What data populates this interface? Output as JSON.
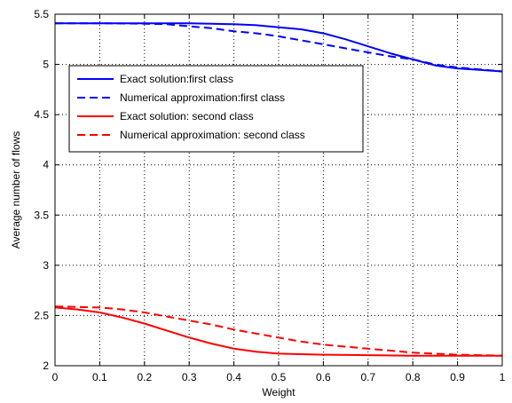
{
  "chart_data": {
    "type": "line",
    "title": "",
    "xlabel": "Weight",
    "ylabel": "Average number of flows",
    "xlim": [
      0,
      1
    ],
    "ylim": [
      2,
      5.5
    ],
    "xticks": [
      0,
      0.1,
      0.2,
      0.3,
      0.4,
      0.5,
      0.6,
      0.7,
      0.8,
      0.9,
      1
    ],
    "yticks": [
      2,
      2.5,
      3,
      3.5,
      4,
      4.5,
      5,
      5.5
    ],
    "xtick_labels": [
      "0",
      "0.1",
      "0.2",
      "0.3",
      "0.4",
      "0.5",
      "0.6",
      "0.7",
      "0.8",
      "0.9",
      "1"
    ],
    "ytick_labels": [
      "2",
      "2.5",
      "3",
      "3.5",
      "4",
      "4.5",
      "5",
      "5.5"
    ],
    "grid": true,
    "grid_style": "dotted",
    "legend_position": "upper-left",
    "series": [
      {
        "name": "Exact solution:first class",
        "color": "#0000ff",
        "linestyle": "solid",
        "x": [
          0,
          0.1,
          0.2,
          0.3,
          0.35,
          0.4,
          0.45,
          0.5,
          0.55,
          0.6,
          0.65,
          0.7,
          0.75,
          0.8,
          0.85,
          0.9,
          0.95,
          1
        ],
        "y": [
          5.41,
          5.41,
          5.41,
          5.41,
          5.405,
          5.4,
          5.39,
          5.37,
          5.35,
          5.31,
          5.25,
          5.18,
          5.11,
          5.05,
          4.99,
          4.96,
          4.945,
          4.93
        ]
      },
      {
        "name": "Numerical approximation:first class",
        "color": "#0000ff",
        "linestyle": "dashed",
        "x": [
          0,
          0.1,
          0.2,
          0.25,
          0.3,
          0.35,
          0.4,
          0.45,
          0.5,
          0.55,
          0.6,
          0.65,
          0.7,
          0.75,
          0.8,
          0.85,
          0.9,
          0.95,
          1
        ],
        "y": [
          5.41,
          5.41,
          5.405,
          5.4,
          5.38,
          5.36,
          5.33,
          5.31,
          5.28,
          5.24,
          5.2,
          5.16,
          5.12,
          5.08,
          5.05,
          5.0,
          4.97,
          4.95,
          4.93
        ]
      },
      {
        "name": "Exact solution: second class",
        "color": "#ff0000",
        "linestyle": "solid",
        "x": [
          0,
          0.05,
          0.1,
          0.15,
          0.2,
          0.25,
          0.3,
          0.35,
          0.4,
          0.45,
          0.5,
          0.55,
          0.6,
          0.7,
          0.8,
          0.9,
          1
        ],
        "y": [
          2.58,
          2.56,
          2.53,
          2.48,
          2.42,
          2.35,
          2.28,
          2.22,
          2.17,
          2.14,
          2.12,
          2.115,
          2.11,
          2.105,
          2.1,
          2.1,
          2.1
        ]
      },
      {
        "name": "Numerical approximation: second class",
        "color": "#ff0000",
        "linestyle": "dashed",
        "x": [
          0,
          0.05,
          0.1,
          0.15,
          0.2,
          0.25,
          0.3,
          0.35,
          0.4,
          0.45,
          0.5,
          0.55,
          0.6,
          0.65,
          0.7,
          0.75,
          0.8,
          0.85,
          0.9,
          0.95,
          1
        ],
        "y": [
          2.59,
          2.585,
          2.58,
          2.56,
          2.53,
          2.49,
          2.45,
          2.41,
          2.36,
          2.32,
          2.28,
          2.24,
          2.21,
          2.19,
          2.17,
          2.15,
          2.13,
          2.12,
          2.11,
          2.105,
          2.1
        ]
      }
    ]
  }
}
